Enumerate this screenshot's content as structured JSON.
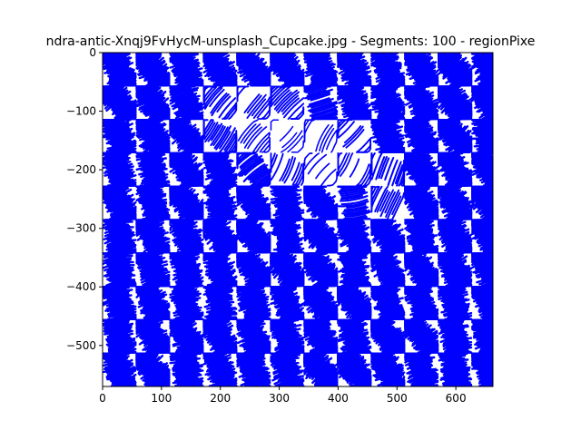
{
  "chart_data": {
    "type": "line",
    "title": "ndra-antic-Xnqj9FvHycM-unsplash_Cupcake.jpg - Segments: 100 - regionPixe",
    "xlabel": "",
    "ylabel": "",
    "xlim": [
      0,
      663
    ],
    "ylim": [
      -570,
      0
    ],
    "x_ticks": [
      0,
      100,
      200,
      300,
      400,
      500,
      600
    ],
    "y_ticks": [
      0,
      -100,
      -200,
      -300,
      -400,
      -500
    ],
    "grid": false,
    "legend": "none",
    "stroke_color": "#0000ff",
    "stroke_pattern": "curved hatching strokes within a grid of square regions; light (white) areas form a diagonal leaf-like shape at the upper center and a rounded pile at the middle",
    "region_size": 57
  }
}
